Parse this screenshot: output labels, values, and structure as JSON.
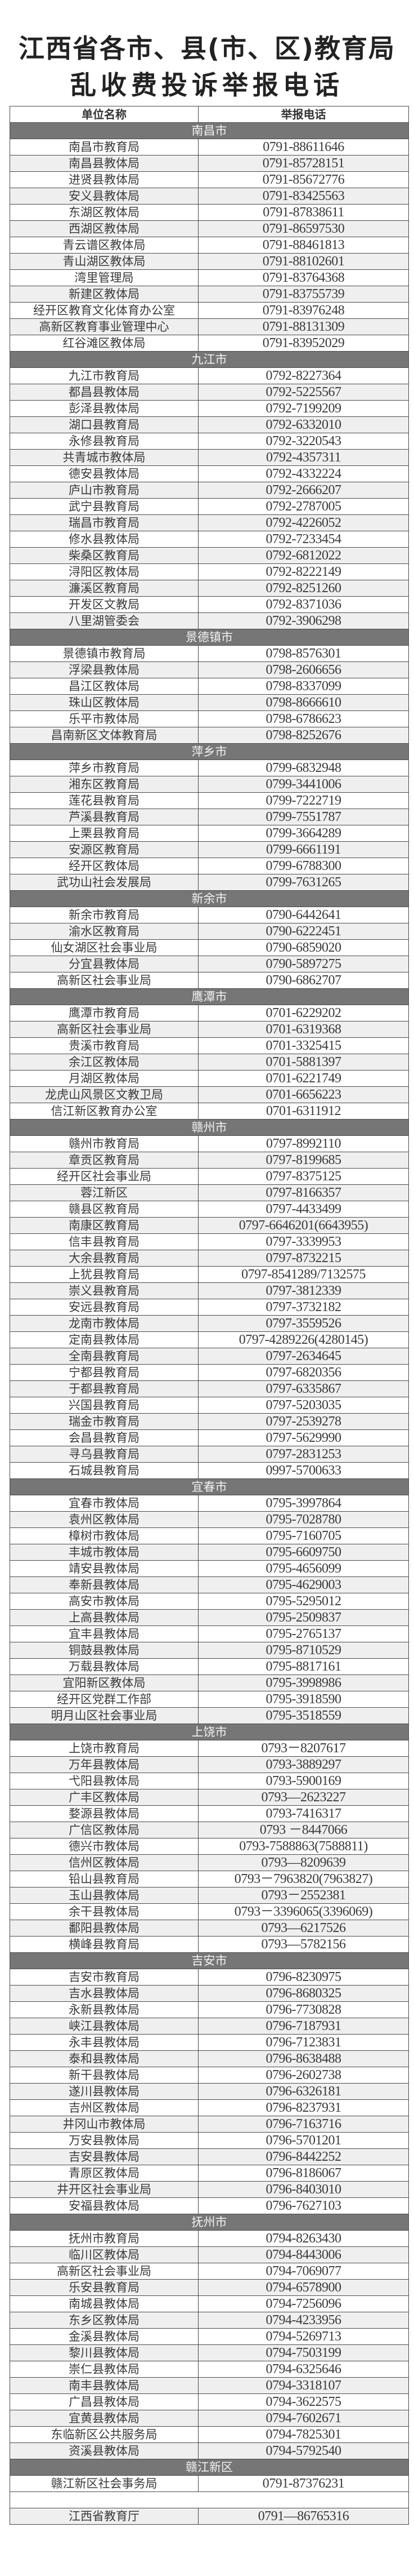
{
  "title": {
    "line1": "江西省各市、县(市、区)教育局",
    "line2": "乱收费投诉举报电话"
  },
  "table": {
    "headers": {
      "name": "单位名称",
      "phone": "举报电话"
    },
    "groups": [
      {
        "city": "南昌市",
        "rows": [
          [
            "南昌市教育局",
            "0791-88611646"
          ],
          [
            "南昌县教体局",
            "0791-85728151"
          ],
          [
            "进贤县教体局",
            "0791-85672776"
          ],
          [
            "安义县教体局",
            "0791-83425563"
          ],
          [
            "东湖区教体局",
            "0791-87838611"
          ],
          [
            "西湖区教体局",
            "0791-86597530"
          ],
          [
            "青云谱区教体局",
            "0791-88461813"
          ],
          [
            "青山湖区教体局",
            "0791-88102601"
          ],
          [
            "湾里管理局",
            "0791-83764368"
          ],
          [
            "新建区教体局",
            "0791-83755739"
          ],
          [
            "经开区教育文化体育办公室",
            "0791-83976248"
          ],
          [
            "高新区教育事业管理中心",
            "0791-88131309"
          ],
          [
            "红谷滩区教体局",
            "0791-83952029"
          ]
        ]
      },
      {
        "city": "九江市",
        "rows": [
          [
            "九江市教育局",
            "0792-8227364"
          ],
          [
            "都昌县教体局",
            "0792-5225567"
          ],
          [
            "彭泽县教体局",
            "0792-7199209"
          ],
          [
            "湖口县教育局",
            "0792-6332010"
          ],
          [
            "永修县教育局",
            "0792-3220543"
          ],
          [
            "共青城市教体局",
            "0792-4357311"
          ],
          [
            "德安县教体局",
            "0792-4332224"
          ],
          [
            "庐山市教育局",
            "0792-2666207"
          ],
          [
            "武宁县教育局",
            "0792-2787005"
          ],
          [
            "瑞昌市教育局",
            "0792-4226052"
          ],
          [
            "修水县教体局",
            "0792-7233454"
          ],
          [
            "柴桑区教育局",
            "0792-6812022"
          ],
          [
            "浔阳区教体局",
            "0792-8222149"
          ],
          [
            "濂溪区教育局",
            "0792-8251260"
          ],
          [
            "开发区文教局",
            "0792-8371036"
          ],
          [
            "八里湖管委会",
            "0792-3906298"
          ]
        ]
      },
      {
        "city": "景德镇市",
        "rows": [
          [
            "景德镇市教育局",
            "0798-8576301"
          ],
          [
            "浮梁县教体局",
            "0798-2606656"
          ],
          [
            "昌江区教体局",
            "0798-8337099"
          ],
          [
            "珠山区教体局",
            "0798-8666610"
          ],
          [
            "乐平市教体局",
            "0798-6786623"
          ],
          [
            "昌南新区文体教育局",
            "0798-8252676"
          ]
        ]
      },
      {
        "city": "萍乡市",
        "rows": [
          [
            "萍乡市教育局",
            "0799-6832948"
          ],
          [
            "湘东区教育局",
            "0799-3441006"
          ],
          [
            "莲花县教育局",
            "0799-7222719"
          ],
          [
            "芦溪县教育局",
            "0799-7551787"
          ],
          [
            "上栗县教育局",
            "0799-3664289"
          ],
          [
            "安源区教育局",
            "0799-6661191"
          ],
          [
            "经开区教体局",
            "0799-6788300"
          ],
          [
            "武功山社会发展局",
            "0799-7631265"
          ]
        ]
      },
      {
        "city": "新余市",
        "rows": [
          [
            "新余市教育局",
            "0790-6442641"
          ],
          [
            "渝水区教育局",
            "0790-6222451"
          ],
          [
            "仙女湖区社会事业局",
            "0790-6859020"
          ],
          [
            "分宜县教体局",
            "0790-5897275"
          ],
          [
            "高新区社会事业局",
            "0790-6862707"
          ]
        ]
      },
      {
        "city": "鹰潭市",
        "rows": [
          [
            "鹰潭市教育局",
            "0701-6229202"
          ],
          [
            "高新区社会事业局",
            "0701-6319368"
          ],
          [
            "贵溪市教育局",
            "0701-3325415"
          ],
          [
            "余江区教体局",
            "0701-5881397"
          ],
          [
            "月湖区教体局",
            "0701-6221749"
          ],
          [
            "龙虎山风景区文教卫局",
            "0701-6656223"
          ],
          [
            "信江新区教育办公室",
            "0701-6311912"
          ]
        ]
      },
      {
        "city": "赣州市",
        "rows": [
          [
            "赣州市教育局",
            "0797-8992110"
          ],
          [
            "章贡区教育局",
            "0797-8199685"
          ],
          [
            "经开区社会事业局",
            "0797-8375125"
          ],
          [
            "蓉江新区",
            "0797-8166357"
          ],
          [
            "赣县区教育局",
            "0797-4433499"
          ],
          [
            "南康区教育局",
            "0797-6646201(6643955)"
          ],
          [
            "信丰县教育局",
            "0797-3339953"
          ],
          [
            "大余县教育局",
            "0797-8732215"
          ],
          [
            "上犹县教育局",
            "0797-8541289/7132575"
          ],
          [
            "崇义县教育局",
            "0797-3812339"
          ],
          [
            "安远县教育局",
            "0797-3732182"
          ],
          [
            "龙南市教体局",
            "0797-3559526"
          ],
          [
            "定南县教体局",
            "0797-4289226(4280145)"
          ],
          [
            "全南县教育局",
            "0797-2634645"
          ],
          [
            "宁都县教育局",
            "0797-6820356"
          ],
          [
            "于都县教育局",
            "0797-6335867"
          ],
          [
            "兴国县教育局",
            "0797-5203035"
          ],
          [
            "瑞金市教育局",
            "0797-2539278"
          ],
          [
            "会昌县教育局",
            "0797-5629990"
          ],
          [
            "寻乌县教育局",
            "0797-2831253"
          ],
          [
            "石城县教育局",
            "0997-5700633"
          ]
        ]
      },
      {
        "city": "宜春市",
        "rows": [
          [
            "宜春市教体局",
            "0795-3997864"
          ],
          [
            "袁州区教体局",
            "0795-7028780"
          ],
          [
            "樟树市教体局",
            "0795-7160705"
          ],
          [
            "丰城市教体局",
            "0795-6609750"
          ],
          [
            "靖安县教体局",
            "0795-4656099"
          ],
          [
            "奉新县教体局",
            "0795-4629003"
          ],
          [
            "高安市教体局",
            "0795-5295012"
          ],
          [
            "上高县教体局",
            "0795-2509837"
          ],
          [
            "宜丰县教体局",
            "0795-2765137"
          ],
          [
            "铜鼓县教体局",
            "0795-8710529"
          ],
          [
            "万载县教体局",
            "0795-8817161"
          ],
          [
            "宜阳新区教体局",
            "0795-3998986"
          ],
          [
            "经开区党群工作部",
            "0795-3918590"
          ],
          [
            "明月山区社会事业局",
            "0795-3518559"
          ]
        ]
      },
      {
        "city": "上饶市",
        "rows": [
          [
            "上饶市教育局",
            "0793－8207617"
          ],
          [
            "万年县教体局",
            "0793-3889297"
          ],
          [
            "弋阳县教体局",
            "0793-5900169"
          ],
          [
            "广丰区教体局",
            "0793—2623227"
          ],
          [
            "婺源县教体局",
            "0793-7416317"
          ],
          [
            "广信区教体局",
            "0793 －8447066"
          ],
          [
            "德兴市教体局",
            "0793-7588863(7588811)"
          ],
          [
            "信州区教体局",
            "0793—8209639"
          ],
          [
            "铅山县教育局",
            "0793－7963820(7963827)"
          ],
          [
            "玉山县教体局",
            "0793－2552381"
          ],
          [
            "余干县教体局",
            "0793－3396065(3396069)"
          ],
          [
            "鄱阳县教体局",
            "0793—6217526"
          ],
          [
            "横峰县教育局",
            "0793—5782156"
          ]
        ]
      },
      {
        "city": "吉安市",
        "rows": [
          [
            "吉安市教育局",
            "0796-8230975"
          ],
          [
            "吉水县教体局",
            "0796-8680325"
          ],
          [
            "永新县教体局",
            "0796-7730828"
          ],
          [
            "峡江县教体局",
            "0796-7187931"
          ],
          [
            "永丰县教体局",
            "0796-7123831"
          ],
          [
            "泰和县教体局",
            "0796-8638488"
          ],
          [
            "新干县教体局",
            "0796-2602738"
          ],
          [
            "遂川县教体局",
            "0796-6326181"
          ],
          [
            "吉州区教体局",
            "0796-8237931"
          ],
          [
            "井冈山市教体局",
            "0796-7163716"
          ],
          [
            "万安县教体局",
            "0796-5701201"
          ],
          [
            "吉安县教体局",
            "0796-8442252"
          ],
          [
            "青原区教体局",
            "0796-8186067"
          ],
          [
            "井开区社会事业局",
            "0796-8403010"
          ],
          [
            "安福县教体局",
            "0796-7627103"
          ]
        ]
      },
      {
        "city": "抚州市",
        "rows": [
          [
            "抚州市教育局",
            "0794-8263430"
          ],
          [
            "临川区教体局",
            "0794-8443006"
          ],
          [
            "高新区社会事业局",
            "0794-7069077"
          ],
          [
            "乐安县教育局",
            "0794-6578900"
          ],
          [
            "南城县教体局",
            "0794-7256096"
          ],
          [
            "东乡区教体局",
            "0794-4233956"
          ],
          [
            "金溪县教体局",
            "0794-5269713"
          ],
          [
            "黎川县教体局",
            "0794-7503199"
          ],
          [
            "崇仁县教体局",
            "0794-6325646"
          ],
          [
            "南丰县教体局",
            "0794-3318107"
          ],
          [
            "广昌县教体局",
            "0794-3622575"
          ],
          [
            "宜黄县教体局",
            "0794-7602671"
          ],
          [
            "东临新区公共服务局",
            "0794-7825301"
          ],
          [
            "资溪县教体局",
            "0794-5792540"
          ]
        ]
      },
      {
        "city": "赣江新区",
        "rows": [
          [
            "赣江新区社会事务局",
            "0791-87376231"
          ]
        ]
      }
    ],
    "province": {
      "name": "江西省教育厅",
      "phone": "0791—86765316"
    }
  },
  "colors": {
    "band": "#767676",
    "alt_row": "#efefef",
    "border": "#4a4a4a"
  }
}
